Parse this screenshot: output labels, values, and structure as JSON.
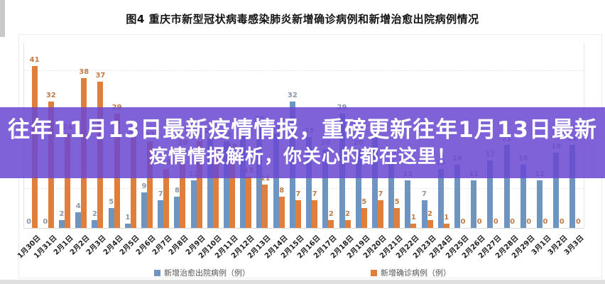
{
  "figure_title": "图4  重庆市新型冠状病毒感染肺炎新增确诊病例和新增治愈出院病例情况",
  "overlay": {
    "line1": "往年11月13日最新疫情情报，重磅更新往年1月13日最新",
    "line2": "疫情情报解析，你关心的都在这里！",
    "background_color": "#6A48D2",
    "opacity": 0.86,
    "text_color": "#ffffff"
  },
  "chart_data": {
    "type": "bar",
    "title": "图4  重庆市新型冠状病毒感染肺炎新增确诊病例和新增治愈出院病例情况",
    "xlabel": "",
    "ylabel": "",
    "ylim": [
      0,
      45
    ],
    "grid": "horizontal dashed every 10 units",
    "legend_position": "bottom",
    "categories": [
      "1月30日",
      "1月31日",
      "2月1日",
      "2月2日",
      "2月3日",
      "2月4日",
      "2月5日",
      "2月6日",
      "2月7日",
      "2月8日",
      "2月9日",
      "2月10日",
      "2月11日",
      "2月12日",
      "2月13日",
      "2月14日",
      "2月15日",
      "2月16日",
      "2月17日",
      "2月18日",
      "2月19日",
      "2月20日",
      "2月21日",
      "2月22日",
      "2月23日",
      "2月24日",
      "2月25日",
      "2月26日",
      "2月27日",
      "2月28日",
      "2月29日",
      "3月1日",
      "3月2日",
      "3月3日"
    ],
    "series": [
      {
        "name": "新增治愈出院病例（例）",
        "color": "#6E95BF",
        "label_color": "#8a98a8",
        "values": [
          0,
          0,
          2,
          4,
          2,
          5,
          1,
          9,
          7,
          8,
          12,
          23,
          22,
          24,
          26,
          24,
          32,
          23,
          20,
          29,
          20,
          25,
          17,
          12,
          7,
          15,
          16,
          12,
          17,
          21,
          16,
          12,
          19,
          21
        ]
      },
      {
        "name": "新增确诊病例（例）",
        "color": "#E07E3C",
        "label_color": "#c07c48",
        "values": [
          41,
          32,
          24,
          38,
          37,
          29,
          23,
          22,
          15,
          20,
          22,
          18,
          19,
          13,
          11,
          8,
          7,
          7,
          2,
          2,
          5,
          7,
          5,
          1,
          2,
          1,
          0,
          0,
          0,
          0,
          0,
          0,
          0,
          0
        ]
      }
    ]
  }
}
